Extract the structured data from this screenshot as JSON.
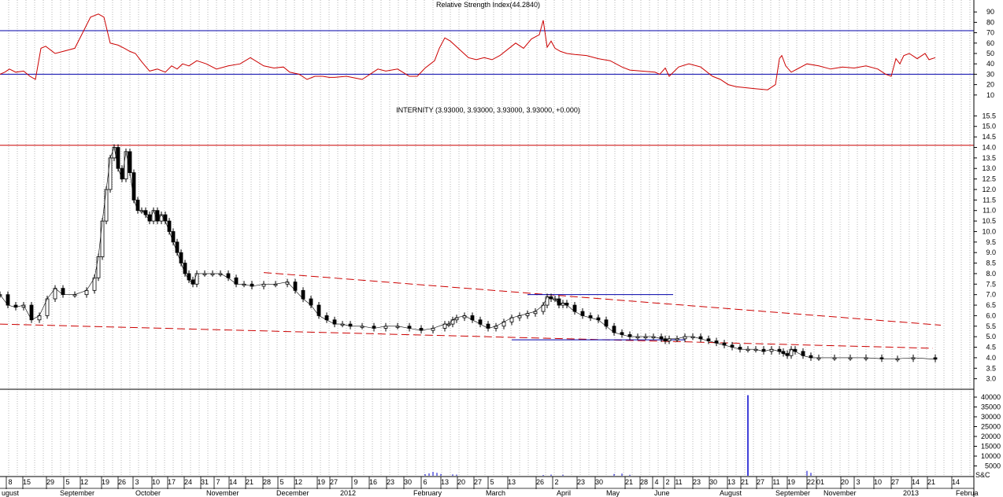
{
  "chart_data": [
    {
      "type": "line",
      "title": "Relative Strength Index(44.2840)",
      "ylim": [
        0,
        100
      ],
      "y_ticks": [
        10,
        20,
        30,
        40,
        50,
        60,
        70,
        80,
        90
      ],
      "reference_lines": [
        30,
        72
      ],
      "line_color": "#cc0000",
      "reference_color": "#0000aa",
      "series": [
        {
          "x": [
            0,
            6,
            12,
            20,
            30,
            38,
            45,
            52,
            58,
            70,
            80,
            95,
            105,
            115,
            125,
            132,
            140,
            150,
            158,
            165,
            172,
            180,
            190,
            200,
            210,
            218,
            225,
            232,
            240,
            250,
            262,
            275,
            290,
            305,
            318,
            335,
            348,
            360,
            368,
            380,
            390,
            400,
            410,
            418,
            425,
            440,
            460,
            480,
            490,
            505,
            520,
            530,
            540,
            552,
            558,
            565,
            572,
            582,
            595,
            605,
            615,
            625,
            635,
            645,
            655,
            665,
            675,
            685,
            690,
            695,
            700,
            705,
            712,
            720,
            730,
            745,
            760,
            775,
            790,
            800,
            815,
            832,
            838,
            845,
            850,
            862,
            875,
            890,
            905,
            915,
            925,
            935,
            948,
            960,
            975,
            985,
            990,
            993,
            998,
            1005,
            1015,
            1025,
            1040,
            1055,
            1070,
            1085,
            1100,
            1115,
            1125,
            1132,
            1138,
            1143,
            1148,
            1155,
            1165,
            1175,
            1180,
            1188
          ],
          "values": [
            30,
            32,
            35,
            32,
            33,
            28,
            25,
            55,
            57,
            50,
            52,
            55,
            70,
            85,
            88,
            85,
            60,
            58,
            55,
            52,
            50,
            42,
            33,
            35,
            32,
            38,
            35,
            40,
            38,
            43,
            40,
            35,
            38,
            40,
            46,
            38,
            36,
            37,
            32,
            30,
            25,
            28,
            28,
            27,
            27,
            28,
            25,
            35,
            33,
            35,
            28,
            28,
            36,
            43,
            55,
            65,
            62,
            55,
            46,
            44,
            46,
            44,
            48,
            54,
            60,
            55,
            64,
            68,
            82,
            56,
            62,
            55,
            52,
            50,
            49,
            48,
            45,
            43,
            37,
            34,
            33,
            32,
            30,
            36,
            28,
            37,
            40,
            37,
            28,
            25,
            20,
            18,
            17,
            16,
            15,
            20,
            45,
            48,
            38,
            32,
            36,
            40,
            38,
            35,
            37,
            36,
            38,
            35,
            30,
            28,
            45,
            40,
            48,
            50,
            45,
            50,
            44,
            46
          ]
        }
      ]
    },
    {
      "type": "line",
      "title": "INTERNITY (3.93000, 3.93000, 3.93000, 3.93000, +0.000)",
      "ylim": [
        2.5,
        16
      ],
      "y_ticks": [
        "3.0",
        "3.5",
        "4.0",
        "4.5",
        "5.0",
        "5.5",
        "6.0",
        "6.5",
        "7.0",
        "7.5",
        "8.0",
        "8.5",
        "9.0",
        "9.5",
        "10.0",
        "10.5",
        "11.0",
        "11.5",
        "12.0",
        "12.5",
        "13.0",
        "13.5",
        "14.0",
        "14.5",
        "15.0",
        "15.5"
      ],
      "resistance_level": 14.1,
      "upper_trend_start": [
        335,
        8.05
      ],
      "upper_trend_end": [
        1195,
        5.55
      ],
      "lower_trend_start": [
        0,
        5.6
      ],
      "lower_trend_end": [
        1185,
        4.45
      ],
      "blue_segment_1": [
        670,
        855,
        7.0
      ],
      "blue_segment_2": [
        650,
        870,
        4.85
      ],
      "series": [
        {
          "x": [
            0,
            10,
            20,
            30,
            40,
            50,
            60,
            70,
            80,
            95,
            110,
            120,
            125,
            130,
            135,
            140,
            145,
            150,
            155,
            160,
            165,
            170,
            175,
            180,
            185,
            190,
            195,
            200,
            205,
            210,
            215,
            220,
            225,
            230,
            235,
            240,
            245,
            250,
            260,
            270,
            280,
            290,
            300,
            310,
            320,
            335,
            350,
            365,
            375,
            385,
            395,
            405,
            415,
            425,
            435,
            445,
            460,
            475,
            490,
            505,
            520,
            535,
            550,
            565,
            570,
            575,
            580,
            590,
            600,
            610,
            620,
            630,
            640,
            650,
            660,
            670,
            680,
            690,
            695,
            700,
            705,
            710,
            715,
            720,
            730,
            740,
            750,
            760,
            770,
            780,
            790,
            800,
            810,
            820,
            830,
            840,
            845,
            850,
            860,
            870,
            880,
            890,
            900,
            910,
            920,
            930,
            940,
            950,
            960,
            970,
            980,
            990,
            995,
            1000,
            1005,
            1010,
            1020,
            1030,
            1040,
            1060,
            1080,
            1100,
            1120,
            1140,
            1160,
            1188
          ],
          "values": [
            7.0,
            6.5,
            6.4,
            6.5,
            5.8,
            6.0,
            6.8,
            7.3,
            7.0,
            7.0,
            7.2,
            7.8,
            8.8,
            10.5,
            12.0,
            13.5,
            14.0,
            13.0,
            12.5,
            13.8,
            12.8,
            11.5,
            11.0,
            11.0,
            10.8,
            10.5,
            11.0,
            10.5,
            10.8,
            10.5,
            10.0,
            9.5,
            9.0,
            8.5,
            8.0,
            7.7,
            7.5,
            8.0,
            8.0,
            8.0,
            8.0,
            7.8,
            7.5,
            7.5,
            7.4,
            7.5,
            7.5,
            7.6,
            7.2,
            6.8,
            6.5,
            6.0,
            5.8,
            5.6,
            5.6,
            5.5,
            5.5,
            5.4,
            5.5,
            5.5,
            5.4,
            5.3,
            5.4,
            5.6,
            5.6,
            5.8,
            5.9,
            6.0,
            5.8,
            5.6,
            5.4,
            5.5,
            5.7,
            5.9,
            6.0,
            6.1,
            6.2,
            6.5,
            6.9,
            6.8,
            6.8,
            6.5,
            6.6,
            6.5,
            6.2,
            6.0,
            5.9,
            5.8,
            5.5,
            5.2,
            5.1,
            5.0,
            5.0,
            5.0,
            5.0,
            4.9,
            4.8,
            4.9,
            4.9,
            5.0,
            5.0,
            4.9,
            4.8,
            4.7,
            4.6,
            4.5,
            4.4,
            4.4,
            4.4,
            4.3,
            4.4,
            4.3,
            4.2,
            4.1,
            4.4,
            4.3,
            4.1,
            4.0,
            4.0,
            4.0,
            4.0,
            4.0,
            3.95,
            3.95,
            4.0,
            3.93
          ]
        }
      ]
    },
    {
      "type": "bar",
      "title": "",
      "ylim": [
        0,
        42000
      ],
      "y_ticks": [
        "5000",
        "10000",
        "15000",
        "20000",
        "25000",
        "30000",
        "35000",
        "40000"
      ],
      "bar_color": "#0000cc",
      "x": [
        540,
        545,
        550,
        555,
        560,
        575,
        580,
        690,
        700,
        715,
        780,
        790,
        800,
        950,
        1025,
        1030
      ],
      "values": [
        800,
        1200,
        2000,
        1500,
        900,
        700,
        600,
        400,
        600,
        500,
        900,
        1100,
        500,
        41000,
        2500,
        1500
      ]
    }
  ],
  "x_axis": {
    "day_labels": [
      "8",
      "15",
      "29",
      "5",
      "12",
      "19",
      "26",
      "3",
      "10",
      "17",
      "24",
      "31",
      "7",
      "14",
      "21",
      "28",
      "5",
      "12",
      "19",
      "27",
      "9",
      "16",
      "23",
      "30",
      "6",
      "13",
      "20",
      "27",
      "5",
      "13",
      "26",
      "2",
      "23",
      "30",
      "21",
      "28",
      "4",
      "2",
      "11",
      "23",
      "30",
      "13",
      "21",
      "27",
      "11",
      "19",
      "22",
      "01",
      "20",
      "3",
      "10",
      "27",
      "14",
      "21",
      "14"
    ],
    "month_labels": [
      "ugust",
      "September",
      "October",
      "November",
      "December",
      "2012",
      "February",
      "March",
      "April",
      "May",
      "June",
      "August",
      "September",
      "November",
      "2013",
      "Februa"
    ],
    "corner_label": "S&C"
  },
  "colors": {
    "grid": "#888888",
    "price": "#000000",
    "trend": "#cc0000",
    "level": "#0000aa"
  }
}
